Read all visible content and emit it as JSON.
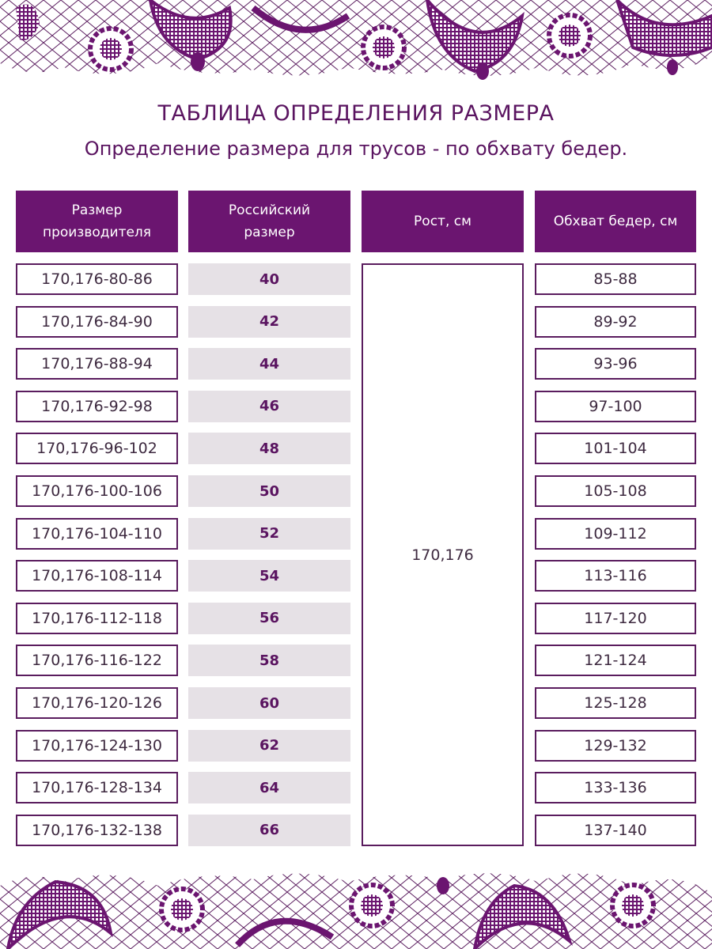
{
  "title": "ТАБЛИЦА ОПРЕДЕЛЕНИЯ РАЗМЕРА",
  "subtitle": "Определение размера для трусов - по обхвату бедер.",
  "colors": {
    "accent": "#6b1570",
    "cell_gray": "#e6e1e6",
    "border": "#5a1c5e"
  },
  "headers": [
    "Размер\nпроизводителя",
    "Российский\nразмер",
    "Рост, см",
    "Обхват бедер, см"
  ],
  "height_value": "170,176",
  "rows": [
    {
      "manufacturer": "170,176-80-86",
      "ru": "40",
      "hips": "85-88"
    },
    {
      "manufacturer": "170,176-84-90",
      "ru": "42",
      "hips": "89-92"
    },
    {
      "manufacturer": "170,176-88-94",
      "ru": "44",
      "hips": "93-96"
    },
    {
      "manufacturer": "170,176-92-98",
      "ru": "46",
      "hips": "97-100"
    },
    {
      "manufacturer": "170,176-96-102",
      "ru": "48",
      "hips": "101-104"
    },
    {
      "manufacturer": "170,176-100-106",
      "ru": "50",
      "hips": "105-108"
    },
    {
      "manufacturer": "170,176-104-110",
      "ru": "52",
      "hips": "109-112"
    },
    {
      "manufacturer": "170,176-108-114",
      "ru": "54",
      "hips": "113-116"
    },
    {
      "manufacturer": "170,176-112-118",
      "ru": "56",
      "hips": "117-120"
    },
    {
      "manufacturer": "170,176-116-122",
      "ru": "58",
      "hips": "121-124"
    },
    {
      "manufacturer": "170,176-120-126",
      "ru": "60",
      "hips": "125-128"
    },
    {
      "manufacturer": "170,176-124-130",
      "ru": "62",
      "hips": "129-132"
    },
    {
      "manufacturer": "170,176-128-134",
      "ru": "64",
      "hips": "133-136"
    },
    {
      "manufacturer": "170,176-132-138",
      "ru": "66",
      "hips": "137-140"
    }
  ]
}
